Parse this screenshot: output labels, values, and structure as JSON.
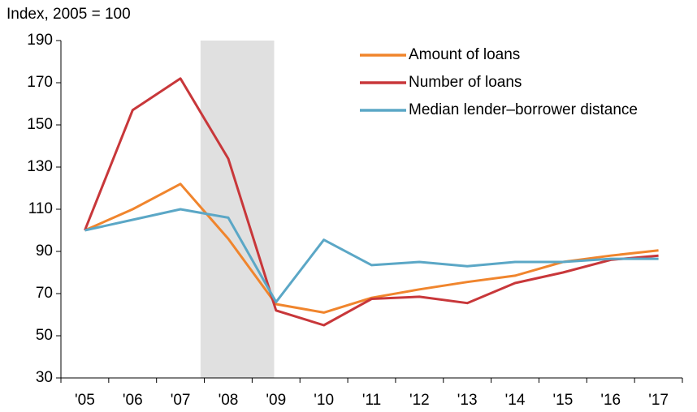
{
  "chart_data": {
    "type": "line",
    "y_axis_label": "Index, 2005 = 100",
    "categories": [
      "'05",
      "'06",
      "'07",
      "'08",
      "'09",
      "'10",
      "'11",
      "'12",
      "'13",
      "'14",
      "'15",
      "'16",
      "'17"
    ],
    "series": [
      {
        "name": "Amount of loans",
        "color": "#f0852d",
        "values": [
          100,
          110,
          122,
          96,
          65,
          61,
          68,
          72,
          75.5,
          78.5,
          85,
          88,
          90.5
        ]
      },
      {
        "name": "Number of loans",
        "color": "#c8373a",
        "values": [
          100,
          157,
          172,
          134,
          62,
          55,
          67.5,
          68.5,
          65.5,
          75,
          80,
          86,
          88
        ]
      },
      {
        "name": "Median lender–borrower distance",
        "color": "#5ba7c6",
        "values": [
          100,
          105,
          110,
          106,
          66,
          95.5,
          83.5,
          85,
          83,
          85,
          85,
          86.5,
          86.5
        ]
      }
    ],
    "shaded_band": {
      "x": [
        2.42,
        3.96
      ],
      "color": "#e0e0e0"
    },
    "ylim": [
      30,
      190
    ],
    "yticks": [
      30,
      50,
      70,
      90,
      110,
      130,
      150,
      170,
      190
    ],
    "legend": "top-right"
  }
}
